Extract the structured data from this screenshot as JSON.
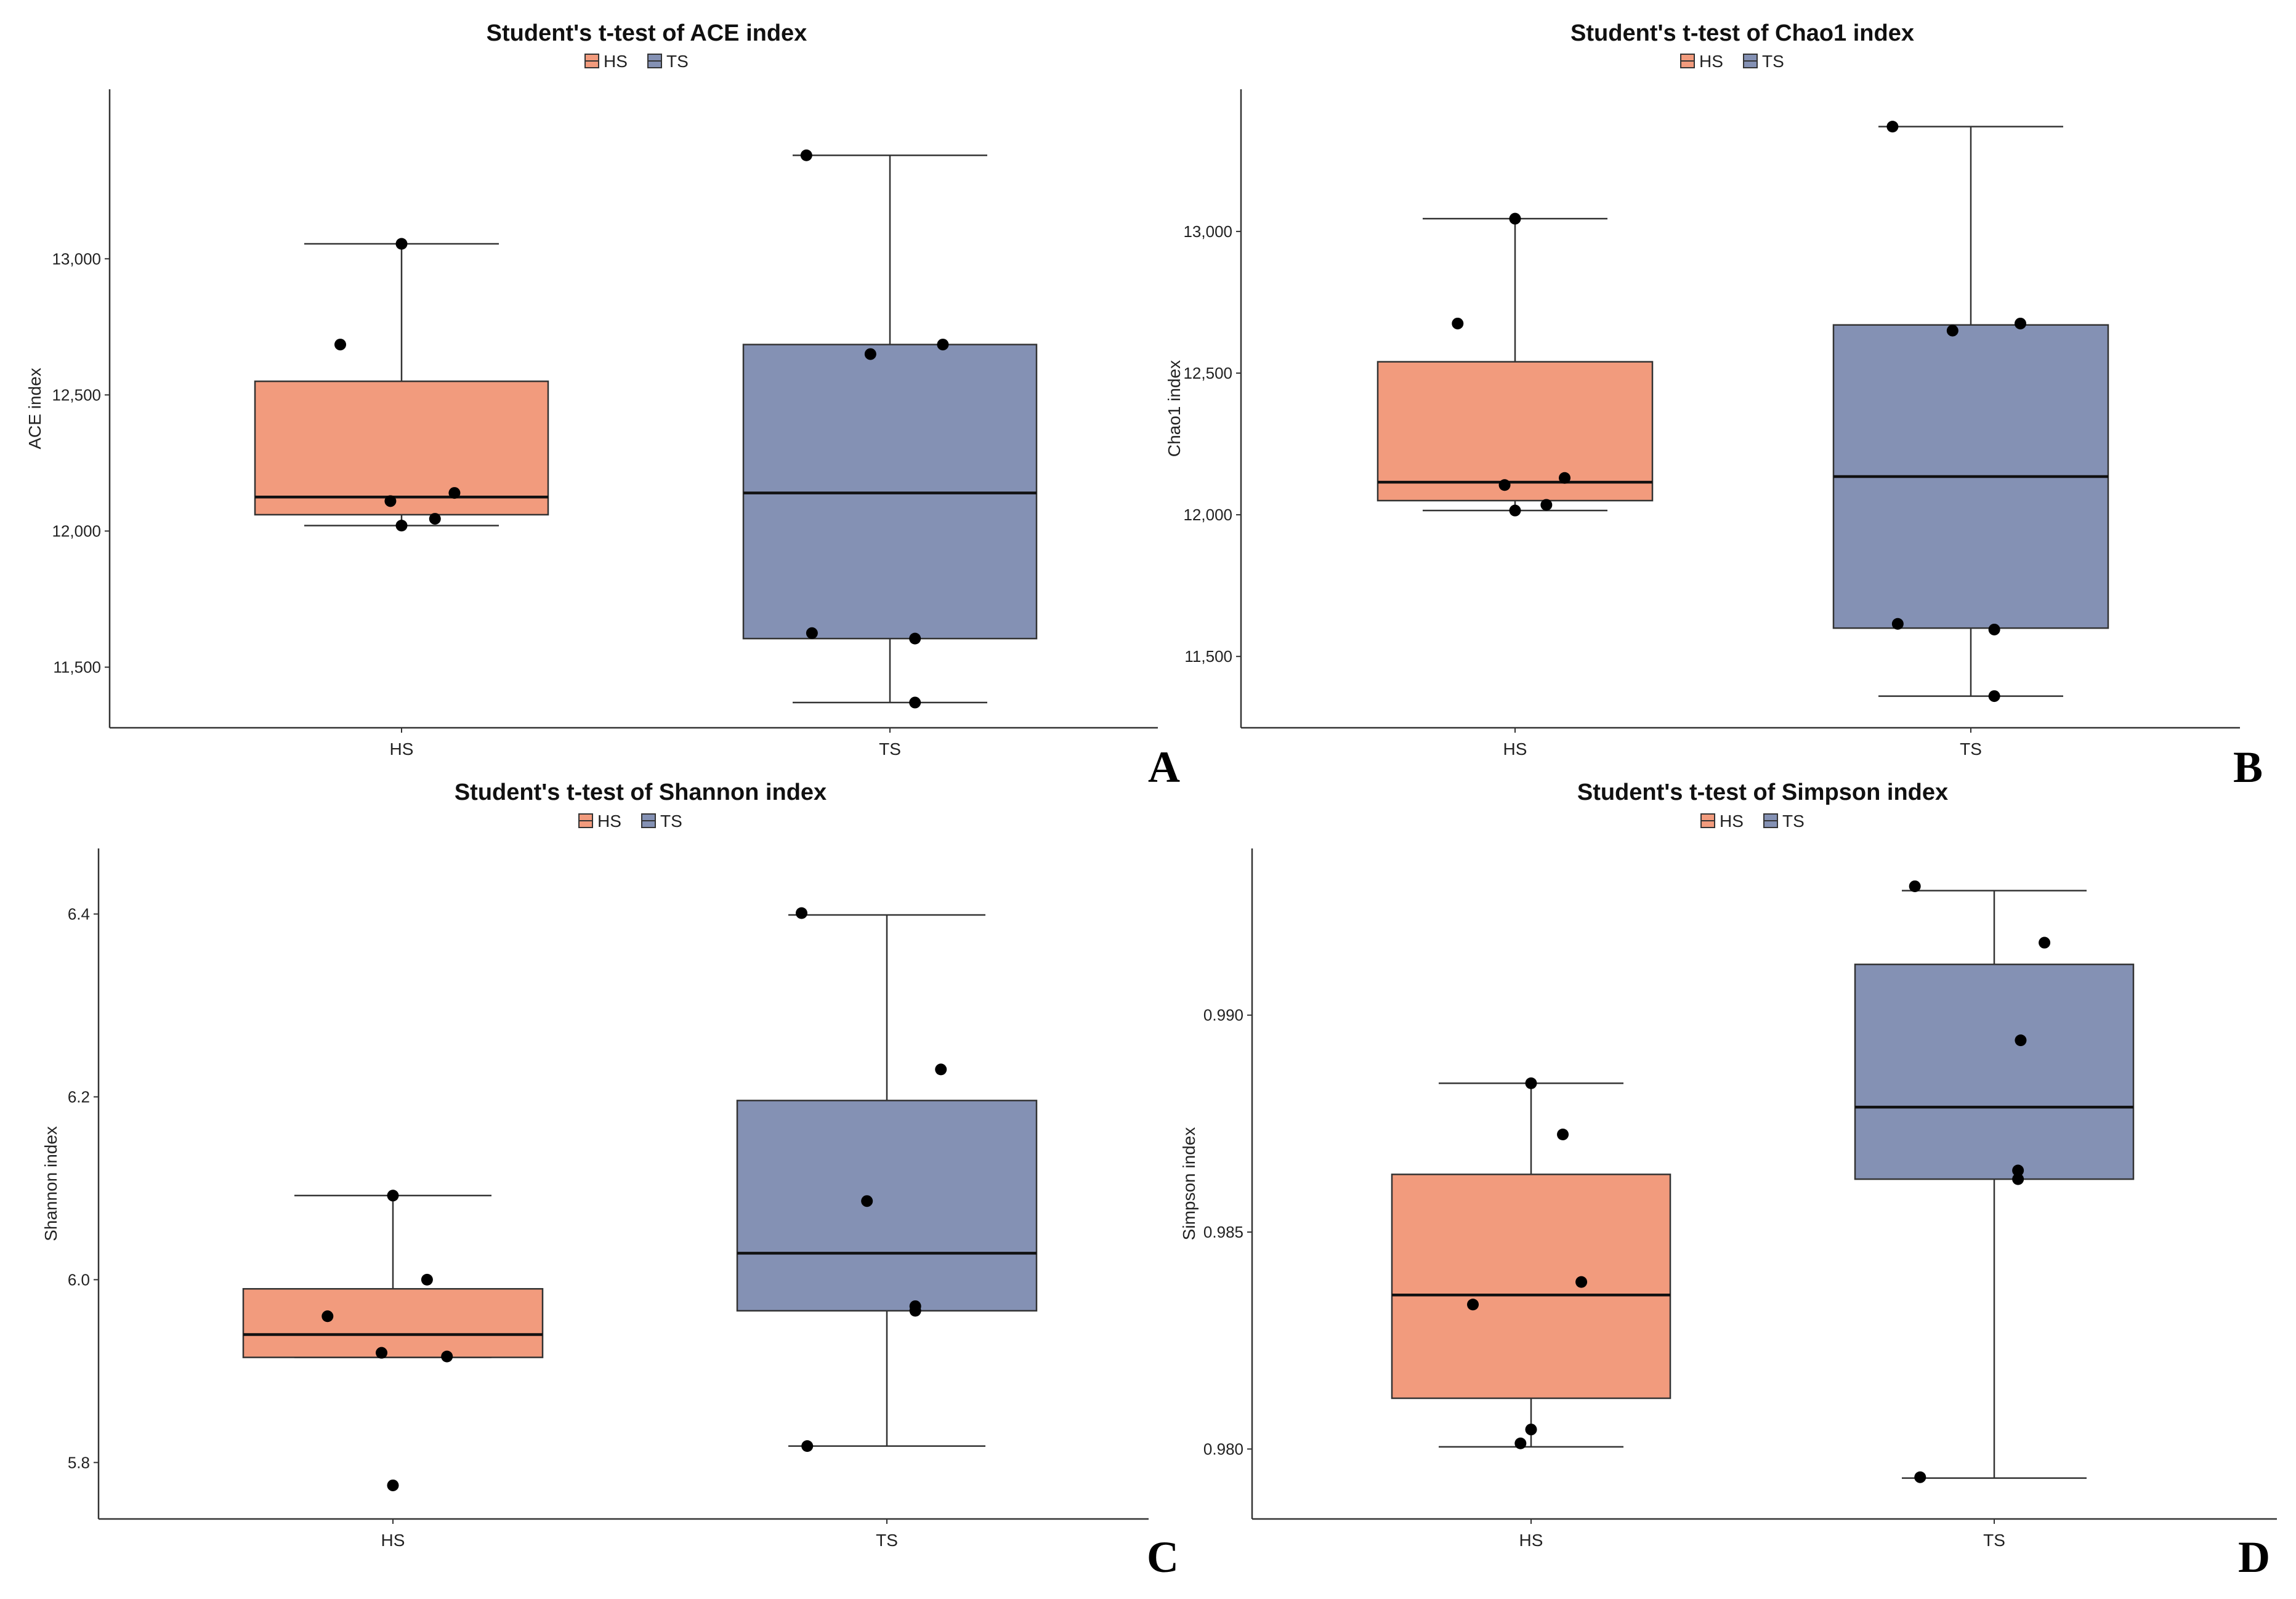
{
  "legend": {
    "entries": [
      {
        "label": "HS",
        "color": "#F29B7D"
      },
      {
        "label": "TS",
        "color": "#8491B4"
      }
    ]
  },
  "chart_data": [
    {
      "type": "boxplot",
      "panel": "A",
      "title": "Student's t-test of ACE index",
      "ylabel": "ACE index",
      "xlabel": "",
      "categories": [
        "HS",
        "TS"
      ],
      "ylim": [
        11300,
        13600
      ],
      "yticks": [
        11500,
        12000,
        12500,
        13000
      ],
      "ytick_labels": [
        "11,500",
        "12,000",
        "12,500",
        "13,000"
      ],
      "boxes": [
        {
          "category": "HS",
          "color": "#F29B7D",
          "whisker_low": 12020,
          "q1": 12060,
          "median": 12125,
          "q3": 12550,
          "whisker_high": 13055
        },
        {
          "category": "TS",
          "color": "#8491B4",
          "whisker_low": 11370,
          "q1": 11605,
          "median": 12140,
          "q3": 12685,
          "whisker_high": 13380
        }
      ],
      "points": [
        {
          "category": "HS",
          "jitter": -0.22,
          "value": 12685
        },
        {
          "category": "HS",
          "jitter": 0.0,
          "value": 13055
        },
        {
          "category": "HS",
          "jitter": -0.04,
          "value": 12110
        },
        {
          "category": "HS",
          "jitter": 0.19,
          "value": 12140
        },
        {
          "category": "HS",
          "jitter": 0.12,
          "value": 12045
        },
        {
          "category": "HS",
          "jitter": 0.0,
          "value": 12020
        },
        {
          "category": "TS",
          "jitter": -0.3,
          "value": 13380
        },
        {
          "category": "TS",
          "jitter": -0.07,
          "value": 12650
        },
        {
          "category": "TS",
          "jitter": 0.19,
          "value": 12685
        },
        {
          "category": "TS",
          "jitter": -0.28,
          "value": 11625
        },
        {
          "category": "TS",
          "jitter": 0.09,
          "value": 11605
        },
        {
          "category": "TS",
          "jitter": 0.09,
          "value": 11370
        }
      ]
    },
    {
      "type": "boxplot",
      "panel": "B",
      "title": "Student's t-test of Chao1 index",
      "ylabel": "Chao1 index",
      "xlabel": "",
      "categories": [
        "HS",
        "TS"
      ],
      "ylim": [
        11270,
        13480
      ],
      "yticks": [
        11500,
        12000,
        12500,
        13000
      ],
      "ytick_labels": [
        "11,500",
        "12,000",
        "12,500",
        "13,000"
      ],
      "boxes": [
        {
          "category": "HS",
          "color": "#F29B7D",
          "whisker_low": 12015,
          "q1": 12050,
          "median": 12115,
          "q3": 12540,
          "whisker_high": 13045
        },
        {
          "category": "TS",
          "color": "#8491B4",
          "whisker_low": 11360,
          "q1": 11600,
          "median": 12135,
          "q3": 12670,
          "whisker_high": 13370
        }
      ],
      "points": [
        {
          "category": "HS",
          "jitter": -0.22,
          "value": 12675
        },
        {
          "category": "HS",
          "jitter": 0.0,
          "value": 13045
        },
        {
          "category": "HS",
          "jitter": -0.04,
          "value": 12105
        },
        {
          "category": "HS",
          "jitter": 0.19,
          "value": 12130
        },
        {
          "category": "HS",
          "jitter": 0.12,
          "value": 12035
        },
        {
          "category": "HS",
          "jitter": 0.0,
          "value": 12015
        },
        {
          "category": "TS",
          "jitter": -0.3,
          "value": 13370
        },
        {
          "category": "TS",
          "jitter": -0.07,
          "value": 12650
        },
        {
          "category": "TS",
          "jitter": 0.19,
          "value": 12675
        },
        {
          "category": "TS",
          "jitter": -0.28,
          "value": 11615
        },
        {
          "category": "TS",
          "jitter": 0.09,
          "value": 11595
        },
        {
          "category": "TS",
          "jitter": 0.09,
          "value": 11360
        }
      ]
    },
    {
      "type": "boxplot",
      "panel": "C",
      "title": "Student's t-test of Shannon index",
      "ylabel": "Shannon index",
      "xlabel": "",
      "categories": [
        "HS",
        "TS"
      ],
      "ylim": [
        5.745,
        6.465
      ],
      "yticks": [
        5.8,
        6.0,
        6.2,
        6.4
      ],
      "ytick_labels": [
        "5.8",
        "6.0",
        "6.2",
        "6.4"
      ],
      "boxes": [
        {
          "category": "HS",
          "color": "#F29B7D",
          "whisker_low": 5.915,
          "q1": 5.915,
          "median": 5.94,
          "q3": 5.99,
          "whisker_high": 6.092
        },
        {
          "category": "TS",
          "color": "#8491B4",
          "whisker_low": 5.818,
          "q1": 5.966,
          "median": 6.029,
          "q3": 6.196,
          "whisker_high": 6.399
        }
      ],
      "points": [
        {
          "category": "HS",
          "jitter": -0.23,
          "value": 5.96
        },
        {
          "category": "HS",
          "jitter": 0.0,
          "value": 6.092
        },
        {
          "category": "HS",
          "jitter": 0.12,
          "value": 6.0
        },
        {
          "category": "HS",
          "jitter": -0.04,
          "value": 5.92
        },
        {
          "category": "HS",
          "jitter": 0.19,
          "value": 5.916
        },
        {
          "category": "HS",
          "jitter": 0.0,
          "value": 5.775
        },
        {
          "category": "TS",
          "jitter": -0.3,
          "value": 6.401
        },
        {
          "category": "TS",
          "jitter": 0.19,
          "value": 6.23
        },
        {
          "category": "TS",
          "jitter": -0.07,
          "value": 6.086
        },
        {
          "category": "TS",
          "jitter": 0.1,
          "value": 5.971
        },
        {
          "category": "TS",
          "jitter": 0.1,
          "value": 5.966
        },
        {
          "category": "TS",
          "jitter": -0.28,
          "value": 5.818
        }
      ]
    },
    {
      "type": "boxplot",
      "panel": "D",
      "title": "Student's t-test of Simpson index",
      "ylabel": "Simpson index",
      "xlabel": "",
      "categories": [
        "HS",
        "TS"
      ],
      "ylim": [
        0.97853,
        0.9937
      ],
      "yticks": [
        0.98,
        0.985,
        0.99
      ],
      "ytick_labels": [
        "0.980",
        "0.985",
        "0.990"
      ],
      "boxes": [
        {
          "category": "HS",
          "color": "#F29B7D",
          "whisker_low": 0.98005,
          "q1": 0.98117,
          "median": 0.98355,
          "q3": 0.98633,
          "whisker_high": 0.98843
        },
        {
          "category": "TS",
          "color": "#8491B4",
          "whisker_low": 0.97933,
          "q1": 0.98622,
          "median": 0.98788,
          "q3": 0.99117,
          "whisker_high": 0.99287
        }
      ],
      "points": [
        {
          "category": "HS",
          "jitter": 0.0,
          "value": 0.98843
        },
        {
          "category": "HS",
          "jitter": 0.12,
          "value": 0.98725
        },
        {
          "category": "HS",
          "jitter": 0.19,
          "value": 0.98385
        },
        {
          "category": "HS",
          "jitter": -0.22,
          "value": 0.98333
        },
        {
          "category": "HS",
          "jitter": 0.0,
          "value": 0.98045
        },
        {
          "category": "HS",
          "jitter": -0.04,
          "value": 0.98013
        },
        {
          "category": "TS",
          "jitter": -0.3,
          "value": 0.99297
        },
        {
          "category": "TS",
          "jitter": 0.19,
          "value": 0.99167
        },
        {
          "category": "TS",
          "jitter": 0.1,
          "value": 0.98942
        },
        {
          "category": "TS",
          "jitter": 0.09,
          "value": 0.98642
        },
        {
          "category": "TS",
          "jitter": 0.09,
          "value": 0.98622
        },
        {
          "category": "TS",
          "jitter": -0.28,
          "value": 0.97935
        }
      ]
    }
  ]
}
